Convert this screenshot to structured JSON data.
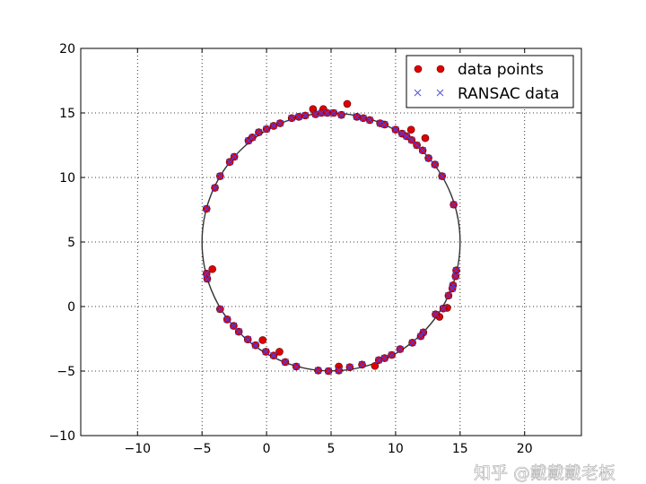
{
  "chart_data": {
    "type": "scatter",
    "title": "",
    "xlabel": "",
    "ylabel": "",
    "xlim": [
      -14.4,
      24.4
    ],
    "ylim": [
      -10,
      20
    ],
    "xticks": [
      -10,
      -5,
      0,
      5,
      10,
      15,
      20
    ],
    "yticks": [
      -10,
      -5,
      0,
      5,
      10,
      15,
      20
    ],
    "xtick_labels": [
      "−10",
      "−5",
      "0",
      "5",
      "10",
      "15",
      "20"
    ],
    "ytick_labels": [
      "−10",
      "−5",
      "0",
      "5",
      "10",
      "15",
      "20"
    ],
    "grid": true,
    "legend_placement": "top-right",
    "fitted_circle": {
      "center": [
        5,
        5
      ],
      "radius": 10,
      "color": "#333333"
    },
    "series": [
      {
        "name": "data points",
        "marker": "circle",
        "color": "#e00000",
        "outliers": [
          [
            3.6,
            15.3
          ],
          [
            4.4,
            15.3
          ],
          [
            6.25,
            15.7
          ],
          [
            11.2,
            13.7
          ],
          [
            12.3,
            13.05
          ],
          [
            -4.2,
            2.9
          ],
          [
            -0.3,
            -2.6
          ],
          [
            1.0,
            -3.5
          ],
          [
            5.6,
            -4.65
          ],
          [
            8.4,
            -4.6
          ],
          [
            13.4,
            -0.8
          ],
          [
            14.0,
            -0.1
          ]
        ]
      },
      {
        "name": "RANSAC data",
        "marker": "x",
        "color": "#4040ff",
        "points": [
          [
            -4.65,
            7.57
          ],
          [
            -4.0,
            9.2
          ],
          [
            -3.6,
            10.1
          ],
          [
            -2.85,
            11.2
          ],
          [
            -2.5,
            11.6
          ],
          [
            -1.4,
            12.85
          ],
          [
            -1.1,
            13.1
          ],
          [
            -0.6,
            13.5
          ],
          [
            0,
            13.75
          ],
          [
            0.55,
            14.0
          ],
          [
            1.05,
            14.2
          ],
          [
            1.95,
            14.6
          ],
          [
            2.5,
            14.7
          ],
          [
            3.0,
            14.8
          ],
          [
            3.8,
            14.9
          ],
          [
            4.25,
            15.0
          ],
          [
            4.7,
            15.0
          ],
          [
            5.2,
            15.0
          ],
          [
            5.8,
            14.85
          ],
          [
            7.0,
            14.7
          ],
          [
            7.5,
            14.6
          ],
          [
            8.0,
            14.45
          ],
          [
            8.8,
            14.2
          ],
          [
            9.15,
            14.1
          ],
          [
            10.0,
            13.7
          ],
          [
            10.5,
            13.4
          ],
          [
            10.85,
            13.2
          ],
          [
            11.25,
            12.9
          ],
          [
            11.65,
            12.5
          ],
          [
            12.1,
            12.1
          ],
          [
            12.55,
            11.5
          ],
          [
            13.05,
            11.0
          ],
          [
            13.6,
            10.1
          ],
          [
            14.5,
            7.9
          ],
          [
            14.7,
            2.8
          ],
          [
            14.65,
            2.35
          ],
          [
            14.45,
            1.65
          ],
          [
            14.4,
            1.4
          ],
          [
            14.1,
            0.85
          ],
          [
            13.7,
            -0.15
          ],
          [
            13.1,
            -0.6
          ],
          [
            12.15,
            -2.0
          ],
          [
            11.95,
            -2.3
          ],
          [
            11.3,
            -2.8
          ],
          [
            10.35,
            -3.3
          ],
          [
            9.7,
            -3.75
          ],
          [
            9.15,
            -4.0
          ],
          [
            8.7,
            -4.15
          ],
          [
            7.4,
            -4.5
          ],
          [
            6.45,
            -4.7
          ],
          [
            5.6,
            -4.95
          ],
          [
            4.8,
            -5.0
          ],
          [
            4.0,
            -4.95
          ],
          [
            2.3,
            -4.65
          ],
          [
            1.45,
            -4.3
          ],
          [
            0.55,
            -3.8
          ],
          [
            -0.05,
            -3.5
          ],
          [
            -0.85,
            -3.0
          ],
          [
            -1.45,
            -2.55
          ],
          [
            -2.15,
            -1.95
          ],
          [
            -2.55,
            -1.5
          ],
          [
            -3.05,
            -1.0
          ],
          [
            -3.6,
            -0.2
          ],
          [
            -4.6,
            2.15
          ],
          [
            -4.65,
            2.55
          ]
        ]
      }
    ]
  },
  "legend": {
    "items": [
      "data points",
      "RANSAC data"
    ]
  },
  "watermark": "知乎 @戴戴戴老板"
}
